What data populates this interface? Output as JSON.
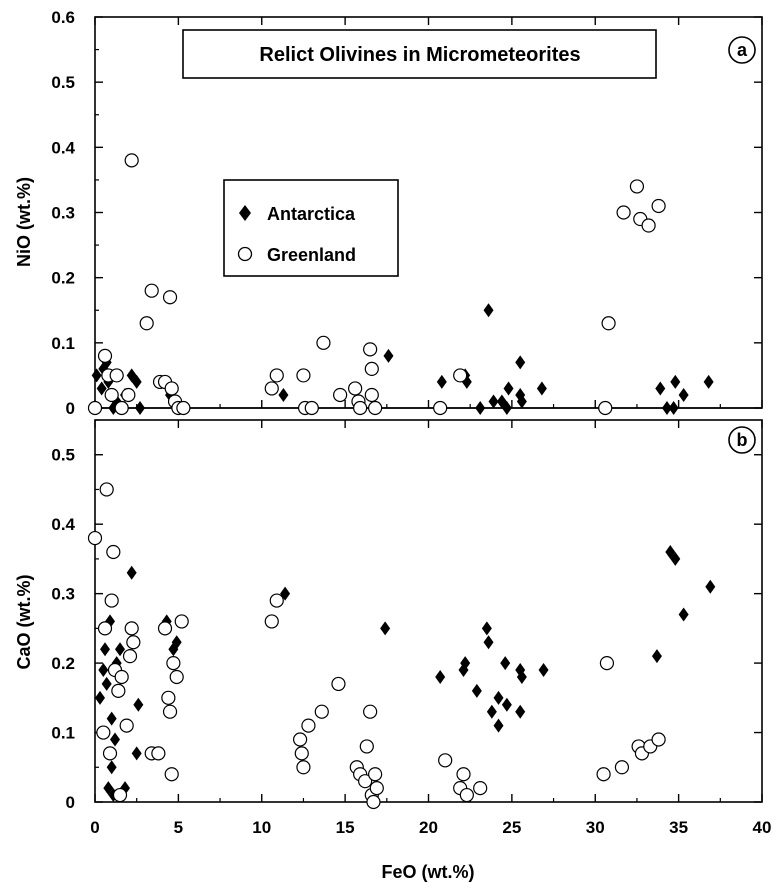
{
  "chart_data": [
    {
      "panel_label": "a",
      "type": "scatter",
      "title": "Relict Olivines in Micrometeorites",
      "xlabel": "FeO (wt.%)",
      "ylabel": "NiO (wt.%)",
      "xlim": [
        0,
        40
      ],
      "ylim": [
        0,
        0.6
      ],
      "x_ticks": [
        "0",
        "5",
        "10",
        "15",
        "20",
        "25",
        "30",
        "35",
        "40"
      ],
      "y_ticks": [
        "0",
        "0.1",
        "0.2",
        "0.3",
        "0.4",
        "0.5",
        "0.6"
      ],
      "legend": {
        "placement": "upper-left-center",
        "entries": [
          "Antarctica",
          "Greenland"
        ]
      },
      "series": [
        {
          "name": "Antarctica",
          "marker": "filled-diamond",
          "points": [
            [
              0.1,
              0.05
            ],
            [
              0.4,
              0.03
            ],
            [
              0.5,
              0.06
            ],
            [
              0.7,
              0.07
            ],
            [
              0.8,
              0.04
            ],
            [
              1.0,
              0.02
            ],
            [
              1.1,
              0.0
            ],
            [
              1.3,
              0.01
            ],
            [
              1.5,
              0.0
            ],
            [
              1.8,
              0.02
            ],
            [
              2.2,
              0.05
            ],
            [
              2.5,
              0.04
            ],
            [
              2.7,
              0.0
            ],
            [
              4.2,
              0.04
            ],
            [
              4.5,
              0.02
            ],
            [
              4.7,
              0.01
            ],
            [
              5.0,
              0.0
            ],
            [
              11.3,
              0.02
            ],
            [
              17.6,
              0.08
            ],
            [
              20.8,
              0.04
            ],
            [
              22.2,
              0.05
            ],
            [
              22.3,
              0.04
            ],
            [
              23.1,
              0.0
            ],
            [
              23.6,
              0.15
            ],
            [
              23.9,
              0.01
            ],
            [
              24.4,
              0.01
            ],
            [
              24.7,
              0.0
            ],
            [
              24.8,
              0.03
            ],
            [
              25.5,
              0.07
            ],
            [
              25.5,
              0.02
            ],
            [
              25.6,
              0.01
            ],
            [
              26.8,
              0.03
            ],
            [
              33.9,
              0.03
            ],
            [
              34.3,
              0.0
            ],
            [
              34.7,
              0.0
            ],
            [
              34.8,
              0.04
            ],
            [
              35.3,
              0.02
            ],
            [
              36.8,
              0.04
            ]
          ]
        },
        {
          "name": "Greenland",
          "marker": "open-circle",
          "points": [
            [
              0.0,
              0.0
            ],
            [
              0.6,
              0.08
            ],
            [
              0.8,
              0.05
            ],
            [
              1.0,
              0.02
            ],
            [
              1.3,
              0.05
            ],
            [
              1.6,
              0.0
            ],
            [
              2.0,
              0.02
            ],
            [
              2.2,
              0.38
            ],
            [
              3.1,
              0.13
            ],
            [
              3.4,
              0.18
            ],
            [
              3.9,
              0.04
            ],
            [
              4.2,
              0.04
            ],
            [
              4.5,
              0.17
            ],
            [
              4.6,
              0.03
            ],
            [
              4.8,
              0.01
            ],
            [
              5.0,
              0.0
            ],
            [
              5.3,
              0.0
            ],
            [
              10.6,
              0.03
            ],
            [
              10.9,
              0.05
            ],
            [
              12.5,
              0.05
            ],
            [
              12.6,
              0.0
            ],
            [
              13.0,
              0.0
            ],
            [
              13.7,
              0.1
            ],
            [
              14.7,
              0.02
            ],
            [
              15.6,
              0.03
            ],
            [
              15.8,
              0.01
            ],
            [
              15.9,
              0.0
            ],
            [
              16.5,
              0.09
            ],
            [
              16.6,
              0.06
            ],
            [
              16.6,
              0.02
            ],
            [
              16.8,
              0.0
            ],
            [
              20.7,
              0.0
            ],
            [
              21.9,
              0.05
            ],
            [
              30.6,
              0.0
            ],
            [
              30.8,
              0.13
            ],
            [
              31.7,
              0.3
            ],
            [
              32.5,
              0.34
            ],
            [
              32.7,
              0.29
            ],
            [
              33.2,
              0.28
            ],
            [
              33.8,
              0.31
            ]
          ]
        }
      ]
    },
    {
      "panel_label": "b",
      "type": "scatter",
      "title": "",
      "xlabel": "FeO (wt.%)",
      "ylabel": "CaO (wt.%)",
      "xlim": [
        0,
        40
      ],
      "ylim": [
        0,
        0.55
      ],
      "x_ticks": [
        "0",
        "5",
        "10",
        "15",
        "20",
        "25",
        "30",
        "35",
        "40"
      ],
      "y_ticks": [
        "0",
        "0.1",
        "0.2",
        "0.3",
        "0.4",
        "0.5"
      ],
      "series": [
        {
          "name": "Antarctica",
          "marker": "filled-diamond",
          "points": [
            [
              0.3,
              0.15
            ],
            [
              0.5,
              0.19
            ],
            [
              0.6,
              0.22
            ],
            [
              0.7,
              0.17
            ],
            [
              0.8,
              0.02
            ],
            [
              0.9,
              0.26
            ],
            [
              1.0,
              0.12
            ],
            [
              1.0,
              0.05
            ],
            [
              1.1,
              0.01
            ],
            [
              1.2,
              0.09
            ],
            [
              1.3,
              0.2
            ],
            [
              1.5,
              0.22
            ],
            [
              1.8,
              0.02
            ],
            [
              2.2,
              0.33
            ],
            [
              2.5,
              0.07
            ],
            [
              2.6,
              0.14
            ],
            [
              4.3,
              0.26
            ],
            [
              4.7,
              0.22
            ],
            [
              4.9,
              0.23
            ],
            [
              11.4,
              0.3
            ],
            [
              17.4,
              0.25
            ],
            [
              20.7,
              0.18
            ],
            [
              22.1,
              0.19
            ],
            [
              22.2,
              0.2
            ],
            [
              22.9,
              0.16
            ],
            [
              23.5,
              0.25
            ],
            [
              23.6,
              0.23
            ],
            [
              23.8,
              0.13
            ],
            [
              24.2,
              0.15
            ],
            [
              24.2,
              0.11
            ],
            [
              24.6,
              0.2
            ],
            [
              24.7,
              0.14
            ],
            [
              25.5,
              0.19
            ],
            [
              25.6,
              0.18
            ],
            [
              25.5,
              0.13
            ],
            [
              26.9,
              0.19
            ],
            [
              33.7,
              0.21
            ],
            [
              34.5,
              0.36
            ],
            [
              34.8,
              0.35
            ],
            [
              35.3,
              0.27
            ],
            [
              36.9,
              0.31
            ]
          ]
        },
        {
          "name": "Greenland",
          "marker": "open-circle",
          "points": [
            [
              0.0,
              0.38
            ],
            [
              0.5,
              0.1
            ],
            [
              0.6,
              0.25
            ],
            [
              0.7,
              0.45
            ],
            [
              0.9,
              0.07
            ],
            [
              1.0,
              0.29
            ],
            [
              1.1,
              0.36
            ],
            [
              1.2,
              0.19
            ],
            [
              1.4,
              0.16
            ],
            [
              1.5,
              0.01
            ],
            [
              1.6,
              0.18
            ],
            [
              1.9,
              0.11
            ],
            [
              2.1,
              0.21
            ],
            [
              2.2,
              0.25
            ],
            [
              2.3,
              0.23
            ],
            [
              3.4,
              0.07
            ],
            [
              3.8,
              0.07
            ],
            [
              4.2,
              0.25
            ],
            [
              4.4,
              0.15
            ],
            [
              4.5,
              0.13
            ],
            [
              4.6,
              0.04
            ],
            [
              4.7,
              0.2
            ],
            [
              4.9,
              0.18
            ],
            [
              5.2,
              0.26
            ],
            [
              10.6,
              0.26
            ],
            [
              10.9,
              0.29
            ],
            [
              12.3,
              0.09
            ],
            [
              12.4,
              0.07
            ],
            [
              12.5,
              0.05
            ],
            [
              12.8,
              0.11
            ],
            [
              13.6,
              0.13
            ],
            [
              14.6,
              0.17
            ],
            [
              15.7,
              0.05
            ],
            [
              15.9,
              0.04
            ],
            [
              16.2,
              0.03
            ],
            [
              16.3,
              0.08
            ],
            [
              16.5,
              0.13
            ],
            [
              16.6,
              0.01
            ],
            [
              16.7,
              0.0
            ],
            [
              16.8,
              0.04
            ],
            [
              16.9,
              0.02
            ],
            [
              21.0,
              0.06
            ],
            [
              21.9,
              0.02
            ],
            [
              22.1,
              0.04
            ],
            [
              22.3,
              0.01
            ],
            [
              23.1,
              0.02
            ],
            [
              30.5,
              0.04
            ],
            [
              30.7,
              0.2
            ],
            [
              31.6,
              0.05
            ],
            [
              32.6,
              0.08
            ],
            [
              32.8,
              0.07
            ],
            [
              33.3,
              0.08
            ],
            [
              33.8,
              0.09
            ]
          ]
        }
      ]
    }
  ]
}
